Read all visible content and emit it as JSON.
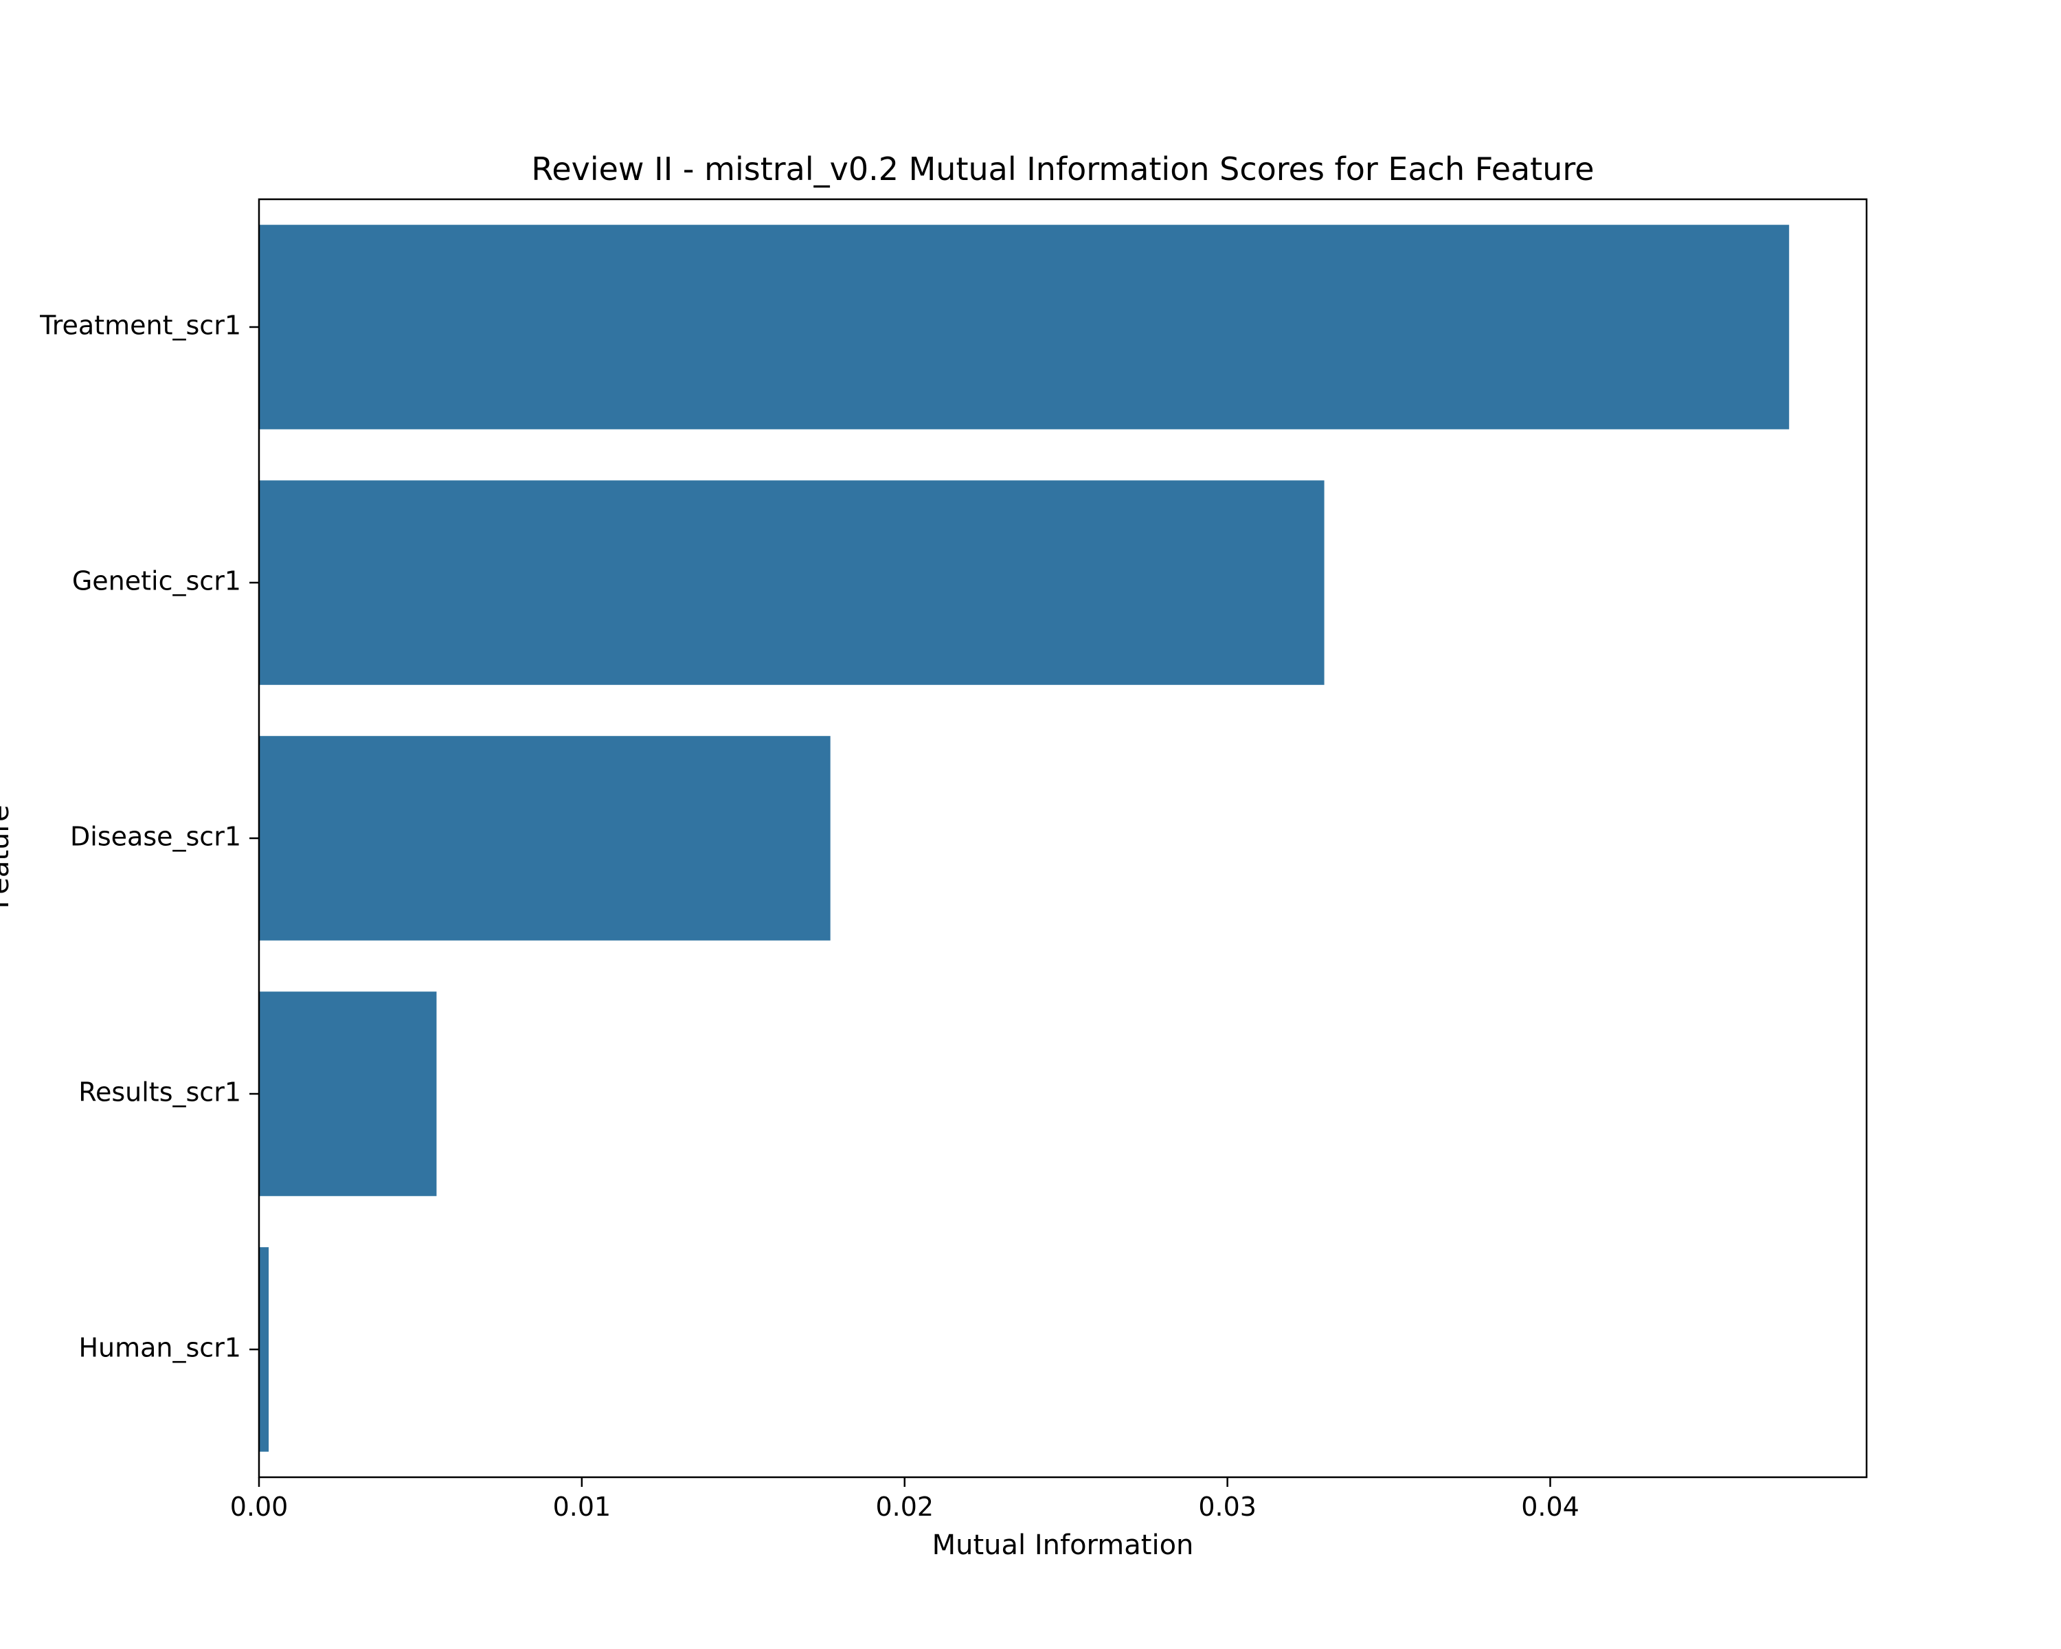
{
  "chart_data": {
    "type": "bar",
    "orientation": "horizontal",
    "title": "Review II - mistral_v0.2 Mutual Information Scores for Each Feature",
    "xlabel": "Mutual Information",
    "ylabel": "Feature",
    "categories": [
      "Treatment_scr1",
      "Genetic_scr1",
      "Disease_scr1",
      "Results_scr1",
      "Human_scr1"
    ],
    "values": [
      0.0474,
      0.033,
      0.0177,
      0.0055,
      0.0003
    ],
    "xlim": [
      0,
      0.0498
    ],
    "xticks": [
      0.0,
      0.01,
      0.02,
      0.03,
      0.04
    ],
    "xtick_labels": [
      "0.00",
      "0.01",
      "0.02",
      "0.03",
      "0.04"
    ],
    "bar_color": "#3274a1",
    "grid": false,
    "legend": "none"
  }
}
